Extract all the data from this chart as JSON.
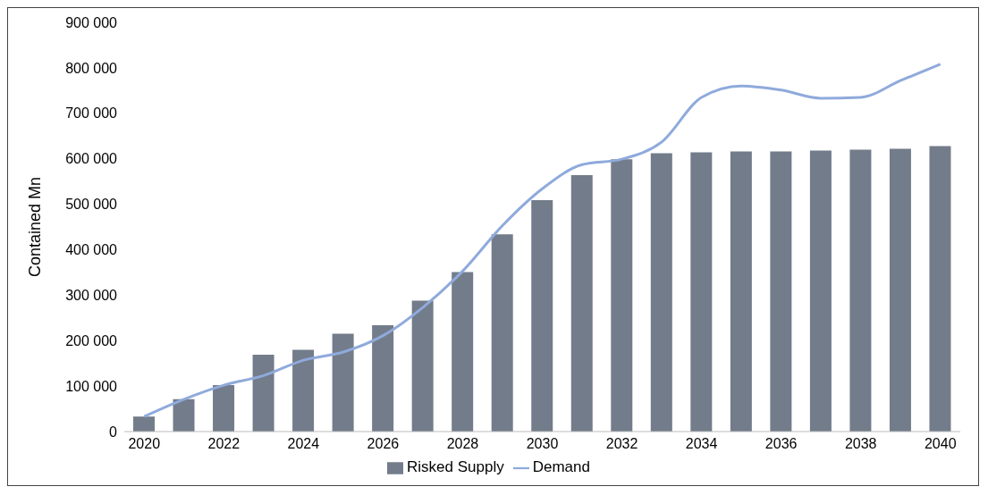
{
  "chart_data": {
    "type": "bar",
    "ylabel": "Contained Mn",
    "categories": [
      "2020",
      null,
      "2022",
      null,
      "2024",
      null,
      "2026",
      null,
      "2028",
      null,
      "2030",
      null,
      "2032",
      null,
      "2034",
      null,
      "2036",
      null,
      "2038",
      null,
      "2040"
    ],
    "series": [
      {
        "name": "Risked Supply",
        "color": "#737c8a",
        "values": [
          33000,
          71000,
          102000,
          169000,
          180000,
          215000,
          234000,
          288000,
          351000,
          434000,
          509000,
          564000,
          599000,
          612000,
          614000,
          616000,
          616000,
          618000,
          620000,
          622000,
          628000
        ]
      },
      {
        "name": "Demand",
        "type": "line",
        "color": "#8faadc",
        "values": [
          33000,
          71000,
          102000,
          123000,
          157000,
          175000,
          211000,
          273000,
          353000,
          453000,
          534000,
          587000,
          599000,
          637000,
          735000,
          760000,
          751000,
          733000,
          735000,
          772000,
          808000
        ]
      }
    ],
    "ylim": [
      0,
      900000
    ],
    "yticks": [
      {
        "value": 0,
        "label": "0"
      },
      {
        "value": 100000,
        "label": "100 000"
      },
      {
        "value": 200000,
        "label": "200 000"
      },
      {
        "value": 300000,
        "label": "300 000"
      },
      {
        "value": 400000,
        "label": "400 000"
      },
      {
        "value": 500000,
        "label": "500 000"
      },
      {
        "value": 600000,
        "label": "600 000"
      },
      {
        "value": 700000,
        "label": "700 000"
      },
      {
        "value": 800000,
        "label": "800 000"
      },
      {
        "value": 900000,
        "label": "900 000"
      }
    ],
    "grid": false,
    "legend": "bottom",
    "marker": "none"
  }
}
